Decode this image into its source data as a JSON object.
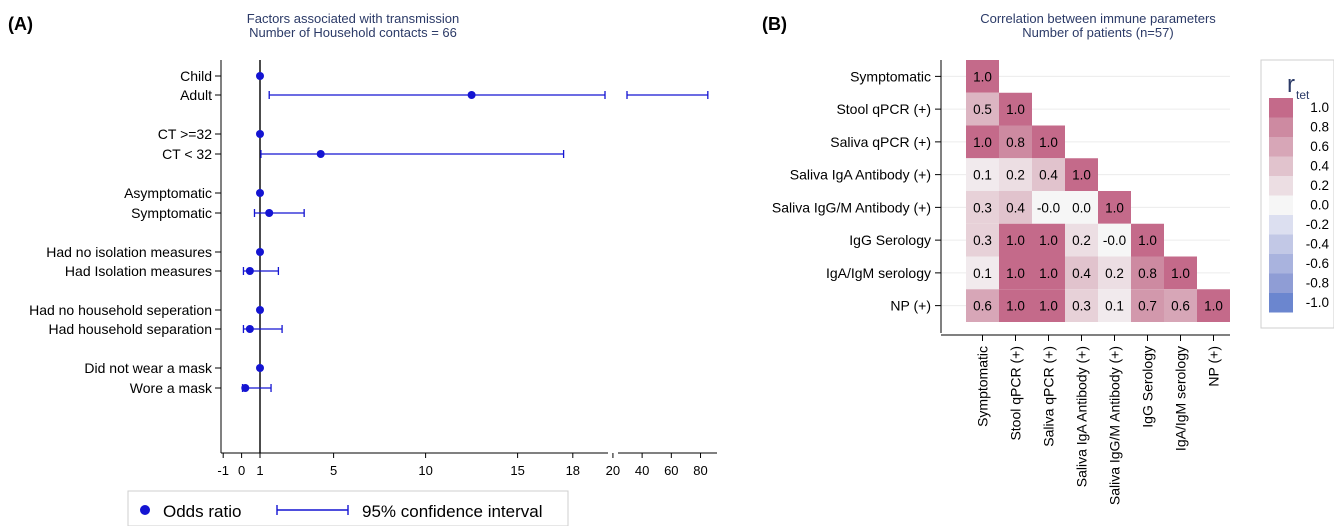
{
  "chart_data": [
    {
      "type": "forest",
      "panel_label": "(A)",
      "title": "Factors associated with transmission",
      "subtitle": "Number of Household contacts = 66",
      "x_ticks_left": [
        "-1",
        "0",
        "1",
        "5",
        "10",
        "15",
        "18"
      ],
      "x_ticks_right": [
        "20",
        "40",
        "60",
        "80"
      ],
      "reference_line": 1,
      "legend": [
        {
          "label": "Odds ratio",
          "marker": "dot"
        },
        {
          "label": "95% confidence interval",
          "marker": "errorbar"
        }
      ],
      "rows": [
        {
          "label": "Child",
          "or": 1,
          "ci_low": null,
          "ci_high": null
        },
        {
          "label": "Adult",
          "or": 12.5,
          "ci_low": 1.5,
          "ci_high": 85
        },
        {
          "label": "CT >=32",
          "or": 1,
          "ci_low": null,
          "ci_high": null
        },
        {
          "label": "CT < 32",
          "or": 4.3,
          "ci_low": 1.05,
          "ci_high": 17.5
        },
        {
          "label": "Asymptomatic",
          "or": 1,
          "ci_low": null,
          "ci_high": null
        },
        {
          "label": "Symptomatic",
          "or": 1.5,
          "ci_low": 0.7,
          "ci_high": 3.4
        },
        {
          "label": "Had no isolation measures",
          "or": 1,
          "ci_low": null,
          "ci_high": null
        },
        {
          "label": "Had Isolation measures",
          "or": 0.45,
          "ci_low": 0.1,
          "ci_high": 2.0
        },
        {
          "label": "Had no household seperation",
          "or": 1,
          "ci_low": null,
          "ci_high": null
        },
        {
          "label": "Had household separation",
          "or": 0.45,
          "ci_low": 0.1,
          "ci_high": 2.2
        },
        {
          "label": "Did not wear a mask",
          "or": 1,
          "ci_low": null,
          "ci_high": null
        },
        {
          "label": "Wore a mask",
          "or": 0.2,
          "ci_low": 0.05,
          "ci_high": 1.6
        }
      ]
    },
    {
      "type": "heatmap",
      "panel_label": "(B)",
      "title": "Correlation between immune parameters",
      "subtitle": "Number of patients (n=57)",
      "variables": [
        "Symptomatic",
        "Stool qPCR (+)",
        "Saliva qPCR (+)",
        "Saliva IgA Antibody (+)",
        "Saliva IgG/M Antibody (+)",
        "IgG Serology",
        "IgA/IgM serology",
        "NP (+)"
      ],
      "matrix_lower": [
        [
          "1.0"
        ],
        [
          "0.5",
          "1.0"
        ],
        [
          "1.0",
          "0.8",
          "1.0"
        ],
        [
          "0.1",
          "0.2",
          "0.4",
          "1.0"
        ],
        [
          "0.3",
          "0.4",
          "-0.0",
          "0.0",
          "1.0"
        ],
        [
          "0.3",
          "1.0",
          "1.0",
          "0.2",
          "-0.0",
          "1.0"
        ],
        [
          "0.1",
          "1.0",
          "1.0",
          "0.4",
          "0.2",
          "0.8",
          "1.0"
        ],
        [
          "0.6",
          "1.0",
          "1.0",
          "0.3",
          "0.1",
          "0.7",
          "0.6",
          "1.0"
        ]
      ],
      "colorbar": {
        "title": "r",
        "title_sub": "tet",
        "ticks": [
          "1.0",
          "0.8",
          "0.6",
          "0.4",
          "0.2",
          "0.0",
          "-0.2",
          "-0.4",
          "-0.6",
          "-0.8",
          "-1.0"
        ],
        "colors": [
          "#c46a8a",
          "#cd8aa1",
          "#d7a6b7",
          "#e1c3cd",
          "#ecdee3",
          "#f6f6f6",
          "#dcdff0",
          "#c2c8e6",
          "#a9b3de",
          "#8f9dd5",
          "#6b86cf"
        ]
      }
    }
  ]
}
